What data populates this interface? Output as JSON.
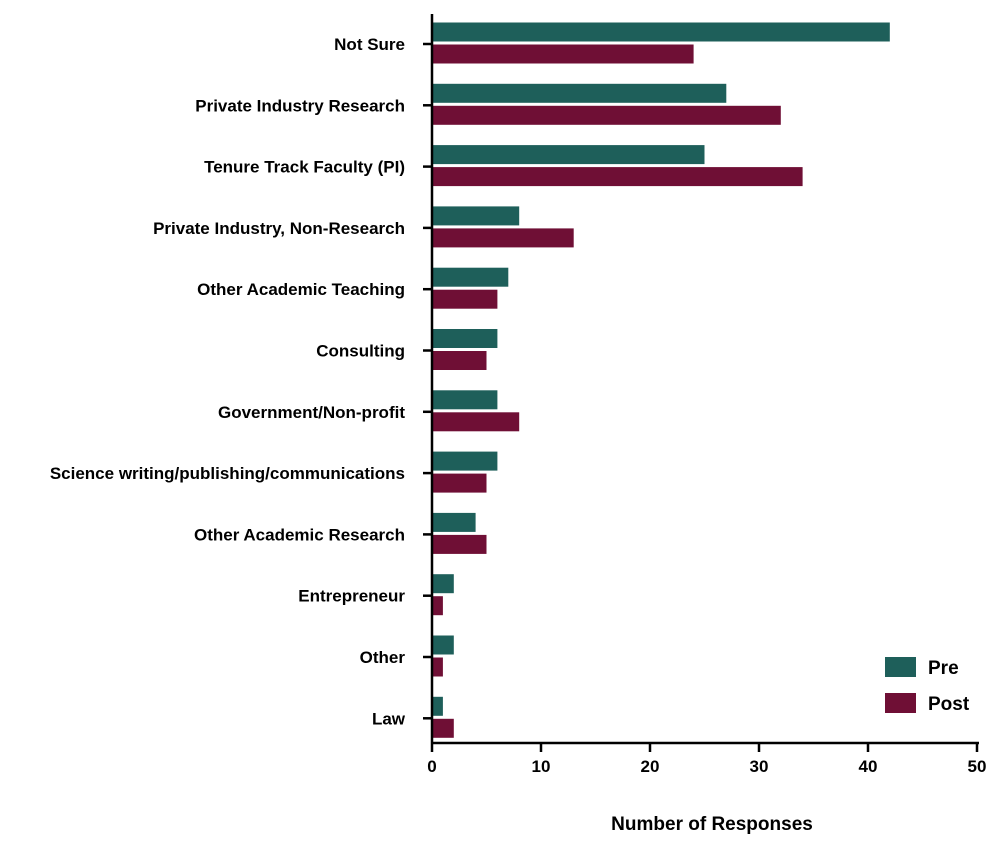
{
  "chart_data": {
    "type": "bar",
    "orientation": "horizontal",
    "categories": [
      "Not Sure",
      "Private Industry Research",
      "Tenure Track Faculty (PI)",
      "Private Industry, Non-Research",
      "Other Academic Teaching",
      "Consulting",
      "Government/Non-profit",
      "Science writing/publishing/communications",
      "Other Academic Research",
      "Entrepreneur",
      "Other",
      "Law"
    ],
    "series": [
      {
        "name": "Pre",
        "color": "#1e5f5a",
        "values": [
          42,
          27,
          25,
          8,
          7,
          6,
          6,
          6,
          4,
          2,
          2,
          1
        ]
      },
      {
        "name": "Post",
        "color": "#6f0f35",
        "values": [
          24,
          32,
          34,
          13,
          6,
          5,
          8,
          5,
          5,
          1,
          1,
          2
        ]
      }
    ],
    "xlabel": "Number of Responses",
    "ylabel": "",
    "xlim": [
      0,
      50
    ],
    "xticks": [
      "0",
      "10",
      "20",
      "30",
      "40",
      "50"
    ],
    "grid": false,
    "legend_position": "bottom-right"
  }
}
